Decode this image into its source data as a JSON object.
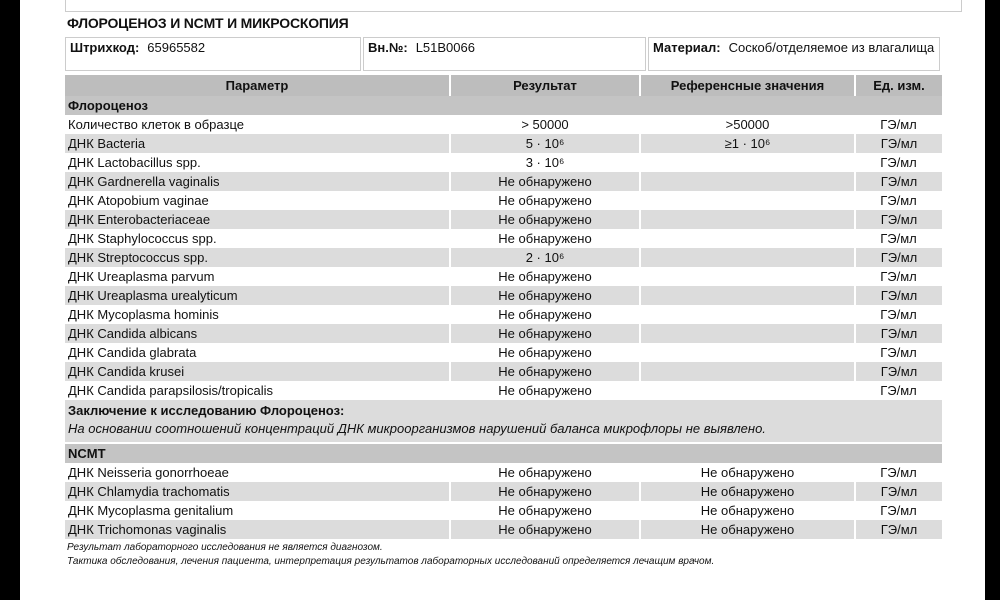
{
  "title": "ФЛОРОЦЕНОЗ И NCMT И МИКРОСКОПИЯ",
  "info": {
    "barcode_label": "Штрихкод:",
    "barcode": "65965582",
    "int_label": "Вн.№:",
    "int_no": "L51B0066",
    "material_label": "Материал:",
    "material": "Соскоб/отделяемое из влагалища"
  },
  "headers": [
    "Параметр",
    "Результат",
    "Референсные значения",
    "Ед. изм."
  ],
  "section1": "Флороценоз",
  "rows1": [
    {
      "p": "Количество клеток в образце",
      "r": "> 50000",
      "ref": ">50000",
      "u": "ГЭ/мл"
    },
    {
      "p": "ДНК Bacteria",
      "r": "5 · 10⁶",
      "ref": "≥1 · 10⁶",
      "u": "ГЭ/мл"
    },
    {
      "p": "ДНК Lactobacillus spp.",
      "r": "3 · 10⁶",
      "ref": "",
      "u": "ГЭ/мл"
    },
    {
      "p": "ДНК Gardnerella vaginalis",
      "r": "Не обнаружено",
      "ref": "",
      "u": "ГЭ/мл"
    },
    {
      "p": "ДНК Atopobium vaginae",
      "r": "Не обнаружено",
      "ref": "",
      "u": "ГЭ/мл"
    },
    {
      "p": "ДНК Enterobacteriaceae",
      "r": "Не обнаружено",
      "ref": "",
      "u": "ГЭ/мл"
    },
    {
      "p": "ДНК Staphylococcus spp.",
      "r": "Не обнаружено",
      "ref": "",
      "u": "ГЭ/мл"
    },
    {
      "p": "ДНК Streptococcus spp.",
      "r": "2 · 10⁶",
      "ref": "",
      "u": "ГЭ/мл"
    },
    {
      "p": "ДНК Ureaplasma parvum",
      "r": "Не обнаружено",
      "ref": "",
      "u": "ГЭ/мл"
    },
    {
      "p": "ДНК Ureaplasma urealyticum",
      "r": "Не обнаружено",
      "ref": "",
      "u": "ГЭ/мл"
    },
    {
      "p": "ДНК Mycoplasma hominis",
      "r": "Не обнаружено",
      "ref": "",
      "u": "ГЭ/мл"
    },
    {
      "p": "ДНК Candida albicans",
      "r": "Не обнаружено",
      "ref": "",
      "u": "ГЭ/мл"
    },
    {
      "p": "ДНК Candida glabrata",
      "r": "Не обнаружено",
      "ref": "",
      "u": "ГЭ/мл"
    },
    {
      "p": "ДНК Candida krusei",
      "r": "Не обнаружено",
      "ref": "",
      "u": "ГЭ/мл"
    },
    {
      "p": "ДНК Candida parapsilosis/tropicalis",
      "r": "Не обнаружено",
      "ref": "",
      "u": "ГЭ/мл"
    }
  ],
  "conclusion_label": "Заключение к исследованию Флороценоз:",
  "conclusion": "На основании соотношений концентраций ДНК микроорганизмов нарушений баланса микрофлоры не выявлено.",
  "section2": "NCMT",
  "rows2": [
    {
      "p": "ДНК Neisseria gonorrhoeae",
      "r": "Не обнаружено",
      "ref": "Не обнаружено",
      "u": "ГЭ/мл"
    },
    {
      "p": "ДНК Chlamydia trachomatis",
      "r": "Не обнаружено",
      "ref": "Не обнаружено",
      "u": "ГЭ/мл"
    },
    {
      "p": "ДНК Mycoplasma genitalium",
      "r": "Не обнаружено",
      "ref": "Не обнаружено",
      "u": "ГЭ/мл"
    },
    {
      "p": "ДНК Trichomonas vaginalis",
      "r": "Не обнаружено",
      "ref": "Не обнаружено",
      "u": "ГЭ/мл"
    }
  ],
  "notes": [
    "Результат лабораторного исследования не является диагнозом.",
    "Тактика обследования, лечения пациента, интерпретация результатов лабораторных исследований определяется лечащим врачом."
  ]
}
